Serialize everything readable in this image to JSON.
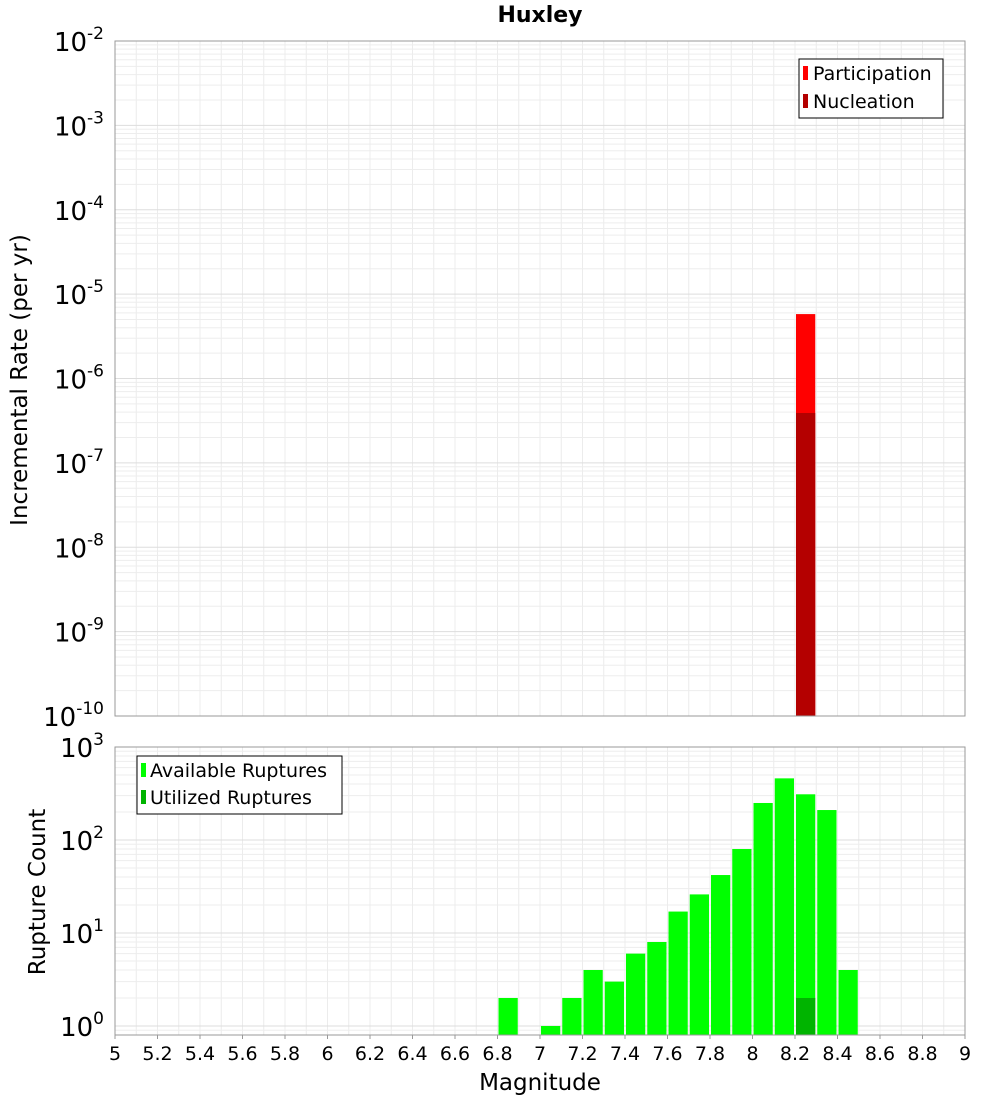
{
  "chart_data": [
    {
      "type": "bar",
      "title": "Huxley",
      "xlabel": "",
      "ylabel": "Incremental Rate (per yr)",
      "yscale": "log",
      "ylim": [
        1e-10,
        0.01
      ],
      "xlim": [
        5,
        9
      ],
      "ytick_labels": [
        {
          "base": "10",
          "exp": "-10"
        },
        {
          "base": "10",
          "exp": "-9"
        },
        {
          "base": "10",
          "exp": "-8"
        },
        {
          "base": "10",
          "exp": "-7"
        },
        {
          "base": "10",
          "exp": "-6"
        },
        {
          "base": "10",
          "exp": "-5"
        },
        {
          "base": "10",
          "exp": "-4"
        },
        {
          "base": "10",
          "exp": "-3"
        },
        {
          "base": "10",
          "exp": "-2"
        }
      ],
      "legend_position": "top-right",
      "series": [
        {
          "name": "Participation",
          "color": "#ff0000",
          "x": [
            8.25
          ],
          "values": [
            5.8e-06
          ]
        },
        {
          "name": "Nucleation",
          "color": "#b40000",
          "x": [
            8.25
          ],
          "values": [
            3.9e-07
          ]
        }
      ]
    },
    {
      "type": "bar",
      "title": "",
      "xlabel": "Magnitude",
      "ylabel": "Rupture Count",
      "yscale": "log",
      "ylim": [
        0.8,
        1000
      ],
      "xlim": [
        5,
        9
      ],
      "ytick_labels": [
        {
          "base": "10",
          "exp": "0"
        },
        {
          "base": "10",
          "exp": "1"
        },
        {
          "base": "10",
          "exp": "2"
        },
        {
          "base": "10",
          "exp": "3"
        }
      ],
      "xtick_labels": [
        "5",
        "5.2",
        "5.4",
        "5.6",
        "5.8",
        "6",
        "6.2",
        "6.4",
        "6.6",
        "6.8",
        "7",
        "7.2",
        "7.4",
        "7.6",
        "7.8",
        "8",
        "8.2",
        "8.4",
        "8.6",
        "8.8",
        "9"
      ],
      "legend_position": "top-left",
      "series": [
        {
          "name": "Available Ruptures",
          "color": "#00ff00",
          "x": [
            6.85,
            7.05,
            7.15,
            7.25,
            7.35,
            7.45,
            7.55,
            7.65,
            7.75,
            7.85,
            7.95,
            8.05,
            8.15,
            8.25,
            8.35,
            8.45
          ],
          "values": [
            2,
            1,
            2,
            4,
            3,
            6,
            8,
            17,
            26,
            42,
            80,
            250,
            460,
            310,
            210,
            4
          ]
        },
        {
          "name": "Utilized Ruptures",
          "color": "#00b400",
          "x": [
            8.25
          ],
          "values": [
            2
          ]
        }
      ]
    }
  ]
}
